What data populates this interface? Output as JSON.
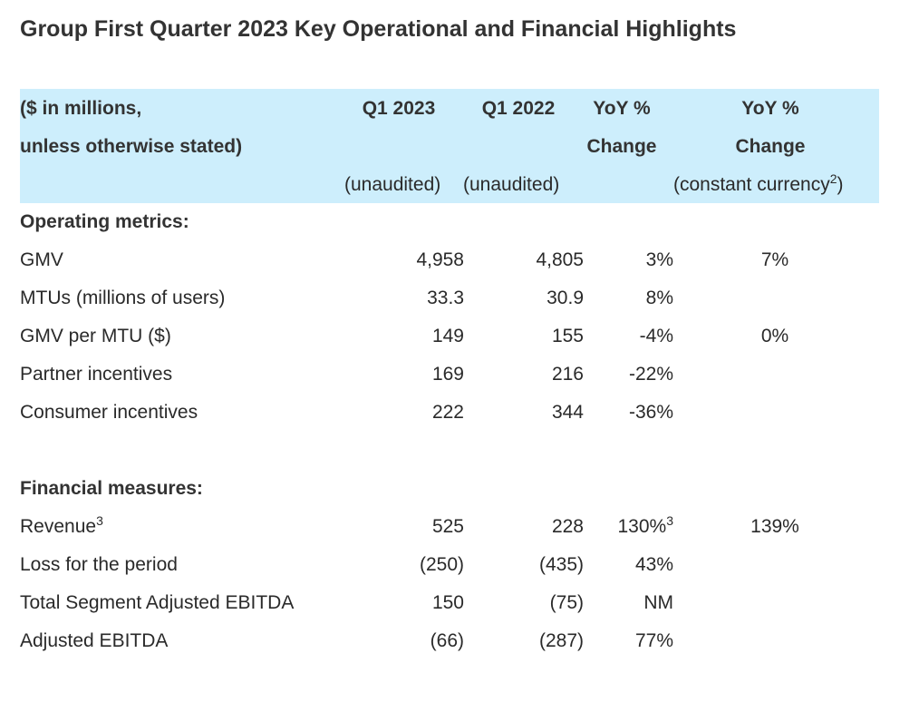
{
  "title": "Group First Quarter 2023 Key Operational and Financial Highlights",
  "header": {
    "label_line1": "($ in millions,",
    "label_line2": "unless otherwise stated)",
    "q1_2023": "Q1 2023",
    "q1_2022": "Q1 2022",
    "yoy_line1": "YoY %",
    "yoy_line2": "Change",
    "yoycc_line1": "YoY %",
    "yoycc_line2": "Change",
    "unaudited_1": "(unaudited)",
    "unaudited_2": "(unaudited)",
    "constant_currency_text": "(constant currency",
    "constant_currency_sup": "2",
    "constant_currency_close": ")"
  },
  "sections": {
    "operating": {
      "heading": "Operating metrics:",
      "rows": [
        {
          "label": "GMV",
          "label_sup": "",
          "q1_2023": "4,958",
          "q1_2022": "4,805",
          "yoy": "3%",
          "yoy_sup": "",
          "yoy_cc": "7%"
        },
        {
          "label": "MTUs (millions of users)",
          "label_sup": "",
          "q1_2023": "33.3",
          "q1_2022": "30.9",
          "yoy": "8%",
          "yoy_sup": "",
          "yoy_cc": ""
        },
        {
          "label": "GMV per MTU ($)",
          "label_sup": "",
          "q1_2023": "149",
          "q1_2022": "155",
          "yoy": "-4%",
          "yoy_sup": "",
          "yoy_cc": "0%"
        },
        {
          "label": "Partner incentives",
          "label_sup": "",
          "q1_2023": "169",
          "q1_2022": "216",
          "yoy": "-22%",
          "yoy_sup": "",
          "yoy_cc": ""
        },
        {
          "label": "Consumer incentives",
          "label_sup": "",
          "q1_2023": "222",
          "q1_2022": "344",
          "yoy": "-36%",
          "yoy_sup": "",
          "yoy_cc": ""
        }
      ]
    },
    "financial": {
      "heading": "Financial measures:",
      "rows": [
        {
          "label": "Revenue",
          "label_sup": "3",
          "q1_2023": "525",
          "q1_2022": "228",
          "yoy": "130%",
          "yoy_sup": "3",
          "yoy_cc": "139%"
        },
        {
          "label": "Loss for the period",
          "label_sup": "",
          "q1_2023": "(250)",
          "q1_2022": "(435)",
          "yoy": "43%",
          "yoy_sup": "",
          "yoy_cc": ""
        },
        {
          "label": "Total Segment Adjusted EBITDA",
          "label_sup": "",
          "q1_2023": "150",
          "q1_2022": "(75)",
          "yoy": "NM",
          "yoy_sup": "",
          "yoy_cc": ""
        },
        {
          "label": "Adjusted EBITDA",
          "label_sup": "",
          "q1_2023": "(66)",
          "q1_2022": "(287)",
          "yoy": "77%",
          "yoy_sup": "",
          "yoy_cc": ""
        }
      ]
    }
  }
}
